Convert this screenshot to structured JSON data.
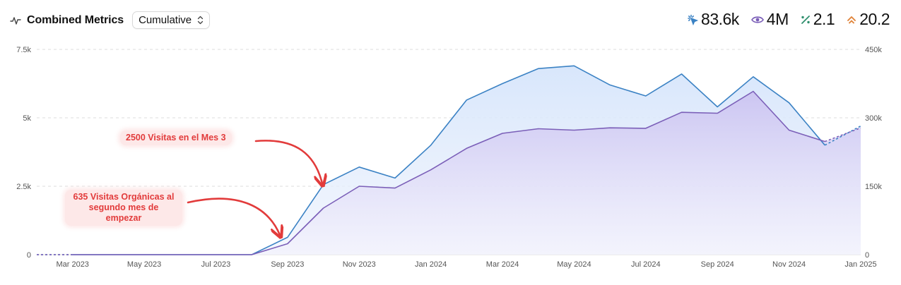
{
  "header": {
    "title": "Combined Metrics",
    "select_value": "Cumulative"
  },
  "metrics": [
    {
      "icon": "clicks-icon",
      "value": "83.6k",
      "color": "#3b82c4"
    },
    {
      "icon": "eye-icon",
      "value": "4M",
      "color": "#7b5fb8"
    },
    {
      "icon": "percent-icon",
      "value": "2.1",
      "color": "#2f8f6e"
    },
    {
      "icon": "position-icon",
      "value": "20.2",
      "color": "#e0843a"
    }
  ],
  "chart_data": {
    "type": "area",
    "x": [
      "2023-02",
      "2023-03",
      "2023-04",
      "2023-05",
      "2023-06",
      "2023-07",
      "2023-08",
      "2023-09",
      "2023-10",
      "2023-11",
      "2023-12",
      "2024-01",
      "2024-02",
      "2024-03",
      "2024-04",
      "2024-05",
      "2024-06",
      "2024-07",
      "2024-08",
      "2024-09",
      "2024-10",
      "2024-11",
      "2024-12",
      "2025-01"
    ],
    "x_tick_labels": [
      "Mar 2023",
      "May 2023",
      "Jul 2023",
      "Sep 2023",
      "Nov 2023",
      "Jan 2024",
      "Mar 2024",
      "May 2024",
      "Jul 2024",
      "Sep 2024",
      "Nov 2024",
      "Jan 2025"
    ],
    "y_left_ticks": [
      "0",
      "2.5k",
      "5k",
      "7.5k"
    ],
    "y_left_lim": [
      0,
      7500
    ],
    "y_right_ticks": [
      "0",
      "150k",
      "300k",
      "450k"
    ],
    "y_right_lim": [
      0,
      450000
    ],
    "grid": true,
    "series": [
      {
        "axis": "left",
        "color": "#3b82c4",
        "fill": "#dbe8fb",
        "values": [
          0,
          0,
          0,
          0,
          0,
          0,
          0,
          635,
          2560,
          3200,
          2800,
          4000,
          5650,
          6250,
          6800,
          6900,
          6200,
          5800,
          6600,
          5400,
          6500,
          5550,
          4000,
          4700
        ]
      },
      {
        "axis": "right",
        "color": "#7b5fb8",
        "fill": "#ddd6f6",
        "values": [
          0,
          0,
          0,
          0,
          0,
          0,
          0,
          24000,
          102000,
          150000,
          146000,
          186000,
          233000,
          266000,
          276000,
          273000,
          278000,
          277000,
          312000,
          310000,
          358000,
          273000,
          248000,
          278000
        ]
      }
    ],
    "dashed_segments": [
      "2023-02 to 2023-03",
      "2024-12 to 2025-01"
    ],
    "annotations": [
      {
        "text": "2500 Visitas en el Mes 3"
      },
      {
        "text": "635 Visitas Orgánicas al segundo mes de empezar"
      }
    ]
  }
}
